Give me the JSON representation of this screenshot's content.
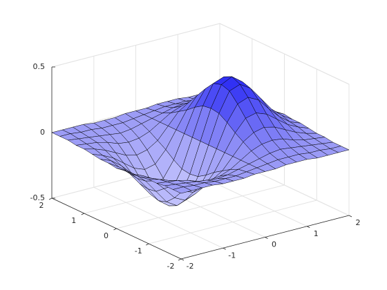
{
  "chart_data": {
    "type": "surface",
    "x": [
      -2,
      -1.75,
      -1.5,
      -1.25,
      -1,
      -0.75,
      -0.5,
      -0.25,
      0,
      0.25,
      0.5,
      0.75,
      1,
      1.25,
      1.5,
      1.75,
      2
    ],
    "y": [
      -2,
      -1.75,
      -1.5,
      -1.25,
      -1,
      -0.75,
      -0.5,
      -0.25,
      0,
      0.25,
      0.5,
      0.75,
      1,
      1.25,
      1.5,
      1.75,
      2
    ],
    "z": [
      [
        0,
        0,
        0,
        0,
        -0.01,
        -0.01,
        -0.01,
        0,
        0,
        0,
        0.01,
        0.01,
        0.01,
        0,
        0,
        0,
        0
      ],
      [
        0,
        0,
        -0.01,
        -0.01,
        -0.02,
        -0.02,
        -0.02,
        -0.01,
        0,
        0.01,
        0.02,
        0.02,
        0.02,
        0.01,
        0.01,
        0,
        0
      ],
      [
        0,
        -0.01,
        -0.02,
        -0.03,
        -0.04,
        -0.05,
        -0.04,
        -0.02,
        0,
        0.02,
        0.04,
        0.05,
        0.04,
        0.03,
        0.02,
        0.01,
        0
      ],
      [
        -0.01,
        -0.02,
        -0.03,
        -0.05,
        -0.08,
        -0.09,
        -0.08,
        -0.05,
        0,
        0.05,
        0.08,
        0.09,
        0.08,
        0.05,
        0.03,
        0.02,
        0.01
      ],
      [
        -0.01,
        -0.03,
        -0.06,
        -0.1,
        -0.14,
        -0.16,
        -0.14,
        -0.09,
        0,
        0.09,
        0.14,
        0.16,
        0.14,
        0.1,
        0.06,
        0.03,
        0.01
      ],
      [
        -0.02,
        -0.05,
        -0.09,
        -0.15,
        -0.21,
        -0.24,
        -0.22,
        -0.13,
        0,
        0.13,
        0.22,
        0.24,
        0.21,
        0.15,
        0.09,
        0.05,
        0.02
      ],
      [
        -0.03,
        -0.06,
        -0.12,
        -0.2,
        -0.29,
        -0.33,
        -0.3,
        -0.18,
        0,
        0.18,
        0.3,
        0.33,
        0.29,
        0.2,
        0.12,
        0.06,
        0.03
      ],
      [
        -0.03,
        -0.08,
        -0.15,
        -0.25,
        -0.35,
        -0.4,
        -0.37,
        -0.22,
        0,
        0.22,
        0.37,
        0.4,
        0.35,
        0.25,
        0.15,
        0.08,
        0.03
      ],
      [
        -0.04,
        -0.08,
        -0.16,
        -0.26,
        -0.37,
        -0.43,
        -0.39,
        -0.23,
        0,
        0.23,
        0.39,
        0.43,
        0.37,
        0.26,
        0.16,
        0.08,
        0.04
      ],
      [
        -0.03,
        -0.08,
        -0.15,
        -0.25,
        -0.35,
        -0.4,
        -0.37,
        -0.22,
        0,
        0.22,
        0.37,
        0.4,
        0.35,
        0.25,
        0.15,
        0.08,
        0.03
      ],
      [
        -0.03,
        -0.06,
        -0.12,
        -0.2,
        -0.29,
        -0.33,
        -0.3,
        -0.18,
        0,
        0.18,
        0.3,
        0.33,
        0.29,
        0.2,
        0.12,
        0.06,
        0.03
      ],
      [
        -0.02,
        -0.05,
        -0.09,
        -0.15,
        -0.21,
        -0.24,
        -0.22,
        -0.13,
        0,
        0.13,
        0.22,
        0.24,
        0.21,
        0.15,
        0.09,
        0.05,
        0.02
      ],
      [
        -0.01,
        -0.03,
        -0.06,
        -0.1,
        -0.14,
        -0.16,
        -0.14,
        -0.09,
        0,
        0.09,
        0.14,
        0.16,
        0.14,
        0.1,
        0.06,
        0.03,
        0.01
      ],
      [
        -0.01,
        -0.02,
        -0.03,
        -0.05,
        -0.08,
        -0.09,
        -0.08,
        -0.05,
        0,
        0.05,
        0.08,
        0.09,
        0.08,
        0.05,
        0.03,
        0.02,
        0.01
      ],
      [
        0,
        -0.01,
        -0.02,
        -0.03,
        -0.04,
        -0.05,
        -0.04,
        -0.02,
        0,
        0.02,
        0.04,
        0.05,
        0.04,
        0.03,
        0.02,
        0.01,
        0
      ],
      [
        0,
        0,
        -0.01,
        -0.01,
        -0.02,
        -0.02,
        -0.02,
        -0.01,
        0,
        0.01,
        0.02,
        0.02,
        0.02,
        0.01,
        0.01,
        0,
        0
      ],
      [
        0,
        0,
        0,
        0,
        -0.01,
        -0.01,
        -0.01,
        0,
        0,
        0,
        0.01,
        0.01,
        0.01,
        0,
        0,
        0,
        0
      ]
    ],
    "xlim": [
      -2,
      2
    ],
    "ylim": [
      -2,
      2
    ],
    "zlim": [
      -0.5,
      0.5
    ],
    "xticks": [
      -2,
      -1,
      0,
      1,
      2
    ],
    "yticks": [
      -2,
      -1,
      0,
      1,
      2
    ],
    "zticks": [
      -0.5,
      0,
      0.5
    ],
    "grid": true,
    "colormap": [
      "#d2d2ff",
      "#9c9cf6",
      "#1616f4"
    ],
    "edge_color": "#000000"
  }
}
